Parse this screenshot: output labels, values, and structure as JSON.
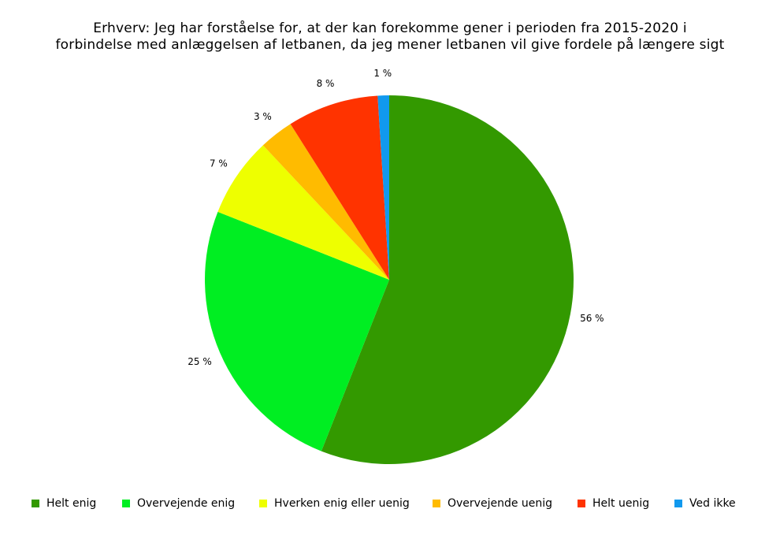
{
  "chart_data": {
    "type": "pie",
    "title": "Erhverv: Jeg har forståelse for, at der kan forekomme gener i perioden fra 2015-2020 i",
    "subtitle": "forbindelse med anlæggelsen af letbanen, da jeg mener letbanen vil give fordele på længere sigt",
    "categories": [
      "Helt enig",
      "Overvejende enig",
      "Hverken enig eller uenig",
      "Overvejende uenig",
      "Helt uenig",
      "Ved ikke"
    ],
    "values": [
      56,
      25,
      7,
      3,
      8,
      1
    ],
    "labels": [
      "56 %",
      "25 %",
      "7 %",
      "3 %",
      "8 %",
      "1 %"
    ],
    "colors": [
      "#339900",
      "#00ee22",
      "#eeff00",
      "#ffbb00",
      "#ff3300",
      "#1199ee"
    ],
    "legend_position": "bottom"
  }
}
